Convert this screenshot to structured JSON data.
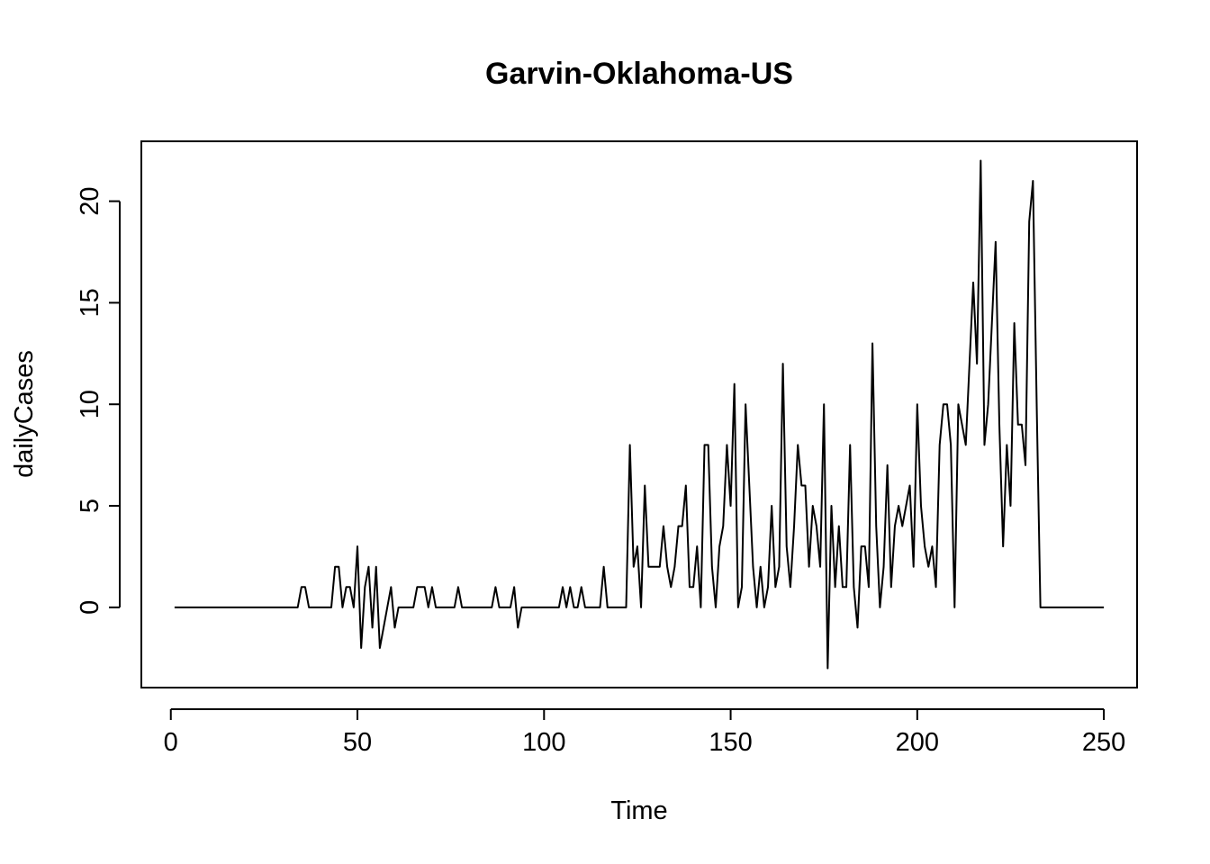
{
  "chart_data": {
    "type": "line",
    "title": "Garvin-Oklahoma-US",
    "xlabel": "Time",
    "ylabel": "dailyCases",
    "xlim": [
      -7.9,
      258.9
    ],
    "ylim": [
      -3.95,
      22.95
    ],
    "x_ticks": [
      0,
      50,
      100,
      150,
      200,
      250
    ],
    "y_ticks": [
      0,
      5,
      10,
      15,
      20
    ],
    "grid": false,
    "legend": "none",
    "line_color": "#000000",
    "series": [
      {
        "x_start": 1,
        "values": [
          0,
          0,
          0,
          0,
          0,
          0,
          0,
          0,
          0,
          0,
          0,
          0,
          0,
          0,
          0,
          0,
          0,
          0,
          0,
          0,
          0,
          0,
          0,
          0,
          0,
          0,
          0,
          0,
          0,
          0,
          0,
          0,
          0,
          0,
          1,
          1,
          0,
          0,
          0,
          0,
          0,
          0,
          0,
          2,
          2,
          0,
          1,
          1,
          0,
          3,
          -2,
          1,
          2,
          -1,
          2,
          -2,
          -1,
          0,
          1,
          -1,
          0,
          0,
          0,
          0,
          0,
          1,
          1,
          1,
          0,
          1,
          0,
          0,
          0,
          0,
          0,
          0,
          1,
          0,
          0,
          0,
          0,
          0,
          0,
          0,
          0,
          0,
          1,
          0,
          0,
          0,
          0,
          1,
          -1,
          0,
          0,
          0,
          0,
          0,
          0,
          0,
          0,
          0,
          0,
          0,
          1,
          0,
          1,
          0,
          0,
          1,
          0,
          0,
          0,
          0,
          0,
          2,
          0,
          0,
          0,
          0,
          0,
          0,
          8,
          2,
          3,
          0,
          6,
          2,
          2,
          2,
          2,
          4,
          2,
          1,
          2,
          4,
          4,
          6,
          1,
          1,
          3,
          0,
          8,
          8,
          2,
          0,
          3,
          4,
          8,
          5,
          11,
          0,
          1,
          10,
          6,
          2,
          0,
          2,
          0,
          1,
          5,
          1,
          2,
          12,
          3,
          1,
          4,
          8,
          6,
          6,
          2,
          5,
          4,
          2,
          10,
          -3,
          5,
          1,
          4,
          1,
          1,
          8,
          1,
          -1,
          3,
          3,
          1,
          13,
          4,
          0,
          2,
          7,
          1,
          4,
          5,
          4,
          5,
          6,
          2,
          10,
          5,
          3,
          2,
          3,
          1,
          8,
          10,
          10,
          8,
          0,
          10,
          9,
          8,
          12,
          16,
          12,
          22,
          8,
          10,
          14,
          18,
          9,
          3,
          8,
          5,
          14,
          9,
          9,
          7,
          19,
          21,
          10,
          0,
          0,
          0,
          0,
          0,
          0,
          0,
          0,
          0,
          0,
          0,
          0,
          0,
          0,
          0,
          0,
          0,
          0
        ]
      }
    ]
  }
}
